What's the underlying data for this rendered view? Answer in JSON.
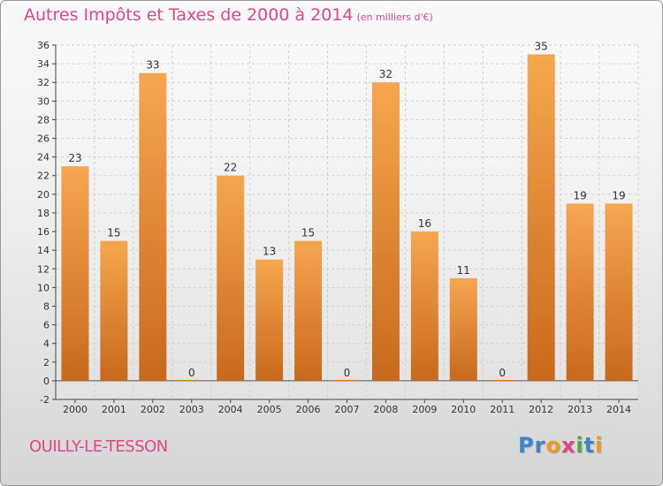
{
  "header": {
    "title": "Autres Impôts et Taxes de 2000 à 2014",
    "subtitle": "(en milliers d'€)"
  },
  "footer": {
    "commune": "OUILLY-LE-TESSON",
    "logo_text": "Proxiti",
    "logo_colors": [
      "#3a86c8",
      "#3a86c8",
      "#f09a1c",
      "#e0468a",
      "#4aa84a",
      "#3a86c8",
      "#f09a1c"
    ]
  },
  "colors": {
    "bar_light": "#f6a650",
    "bar_dark": "#c8691c",
    "text_accent": "#e0468a",
    "axis": "#444444"
  },
  "chart_data": {
    "type": "bar",
    "title": "Autres Impôts et Taxes de 2000 à 2014",
    "subtitle": "(en milliers d'€)",
    "categories": [
      "2000",
      "2001",
      "2002",
      "2003",
      "2004",
      "2005",
      "2006",
      "2007",
      "2008",
      "2009",
      "2010",
      "2011",
      "2012",
      "2013",
      "2014"
    ],
    "values": [
      23,
      15,
      33,
      0,
      22,
      13,
      15,
      0,
      32,
      16,
      11,
      0,
      35,
      19,
      19
    ],
    "ylim": [
      -2,
      36
    ],
    "yticks": [
      -2,
      0,
      2,
      4,
      6,
      8,
      10,
      12,
      14,
      16,
      18,
      20,
      22,
      24,
      26,
      28,
      30,
      32,
      34,
      36
    ],
    "grid": true,
    "data_labels": true,
    "xlabel": "",
    "ylabel": ""
  }
}
